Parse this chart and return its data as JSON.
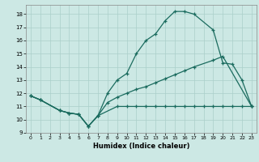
{
  "xlabel": "Humidex (Indice chaleur)",
  "xlim": [
    -0.5,
    23.5
  ],
  "ylim": [
    9,
    18.7
  ],
  "yticks": [
    9,
    10,
    11,
    12,
    13,
    14,
    15,
    16,
    17,
    18
  ],
  "xticks": [
    0,
    1,
    2,
    3,
    4,
    5,
    6,
    7,
    8,
    9,
    10,
    11,
    12,
    13,
    14,
    15,
    16,
    17,
    18,
    19,
    20,
    21,
    22,
    23
  ],
  "bg_color": "#cce8e4",
  "grid_color": "#aacfca",
  "line_color": "#1a6b5e",
  "curve1_x": [
    0,
    1,
    3,
    4,
    5,
    6,
    7,
    8,
    9,
    10,
    11,
    12,
    13,
    14,
    15,
    16,
    17,
    19,
    20,
    21,
    22,
    23
  ],
  "curve1_y": [
    11.8,
    11.5,
    10.7,
    10.5,
    10.4,
    9.5,
    10.3,
    12.0,
    13.0,
    13.5,
    15.0,
    16.0,
    16.5,
    17.5,
    18.2,
    18.2,
    18.0,
    16.8,
    14.3,
    14.2,
    13.0,
    11.0
  ],
  "curve2_x": [
    0,
    1,
    3,
    4,
    5,
    6,
    7,
    8,
    9,
    10,
    11,
    12,
    13,
    14,
    15,
    16,
    17,
    19,
    20,
    23
  ],
  "curve2_y": [
    11.8,
    11.5,
    10.7,
    10.5,
    10.4,
    9.5,
    10.3,
    11.3,
    11.7,
    12.0,
    12.3,
    12.5,
    12.8,
    13.1,
    13.4,
    13.7,
    14.0,
    14.5,
    14.8,
    11.0
  ],
  "curve3_x": [
    0,
    1,
    3,
    4,
    5,
    6,
    7,
    9,
    10,
    11,
    12,
    13,
    14,
    15,
    16,
    17,
    18,
    19,
    20,
    21,
    22,
    23
  ],
  "curve3_y": [
    11.8,
    11.5,
    10.7,
    10.5,
    10.4,
    9.5,
    10.3,
    11.0,
    11.0,
    11.0,
    11.0,
    11.0,
    11.0,
    11.0,
    11.0,
    11.0,
    11.0,
    11.0,
    11.0,
    11.0,
    11.0,
    11.0
  ]
}
